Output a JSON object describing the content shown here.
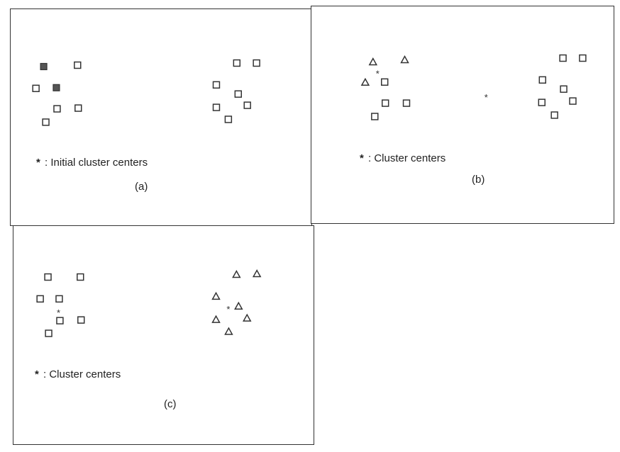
{
  "panels": {
    "a": {
      "legend_symbol": "*",
      "legend_text": ": Initial cluster centers",
      "caption": "(a)"
    },
    "b": {
      "legend_symbol": "*",
      "legend_text": ": Cluster centers",
      "caption": "(b)"
    },
    "c": {
      "legend_symbol": "*",
      "legend_text": ": Cluster centers",
      "caption": "(c)"
    }
  },
  "colors": {
    "stroke": "#333333",
    "marker_fill": "#ffffff",
    "filled_marker": "#555555"
  }
}
